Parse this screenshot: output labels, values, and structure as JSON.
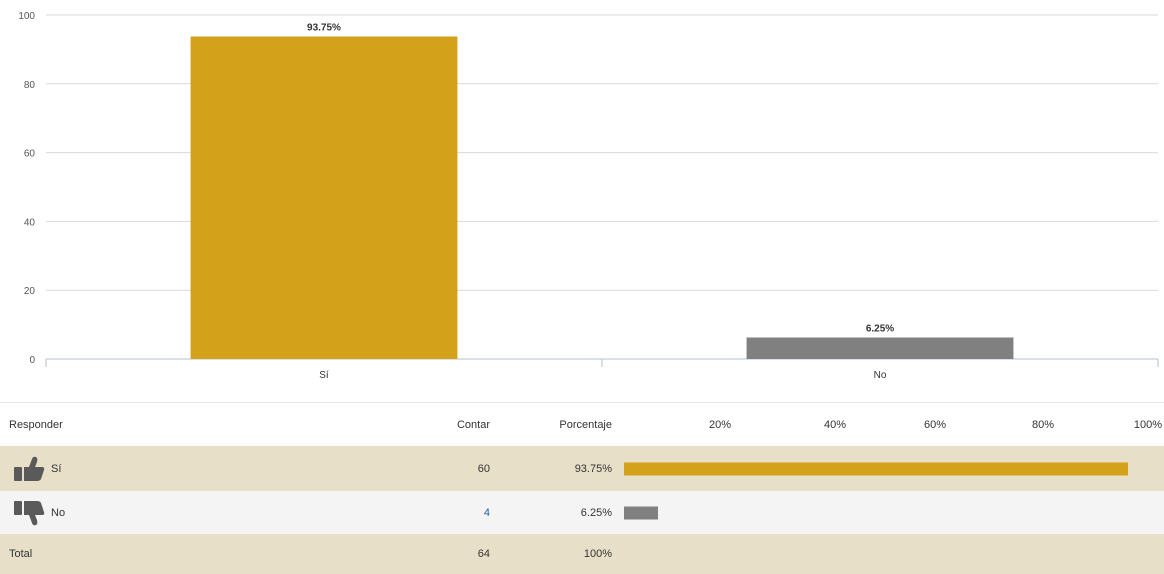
{
  "chart_data": {
    "type": "bar",
    "categories": [
      "Sí",
      "No"
    ],
    "values": [
      93.75,
      6.25
    ],
    "data_labels": [
      "93.75%",
      "6.25%"
    ],
    "colors": [
      "#d4a11a",
      "#808080"
    ],
    "ylim": [
      0,
      100
    ],
    "yticks": [
      0,
      20,
      40,
      60,
      80,
      100
    ],
    "grid": true
  },
  "table": {
    "headers": {
      "responder": "Responder",
      "contar": "Contar",
      "porcentaje": "Porcentaje",
      "scale": [
        "20%",
        "40%",
        "60%",
        "80%",
        "100%"
      ]
    },
    "rows": [
      {
        "icon": "thumbs-up-icon",
        "label": "Sí",
        "count": "60",
        "percent": "93.75%",
        "fraction": 0.9375,
        "color": "#d4a11a"
      },
      {
        "icon": "thumbs-down-icon",
        "label": "No",
        "count": "4",
        "percent": "6.25%",
        "fraction": 0.0625,
        "color": "#808080"
      }
    ],
    "total": {
      "label": "Total",
      "count": "64",
      "percent": "100%"
    }
  }
}
